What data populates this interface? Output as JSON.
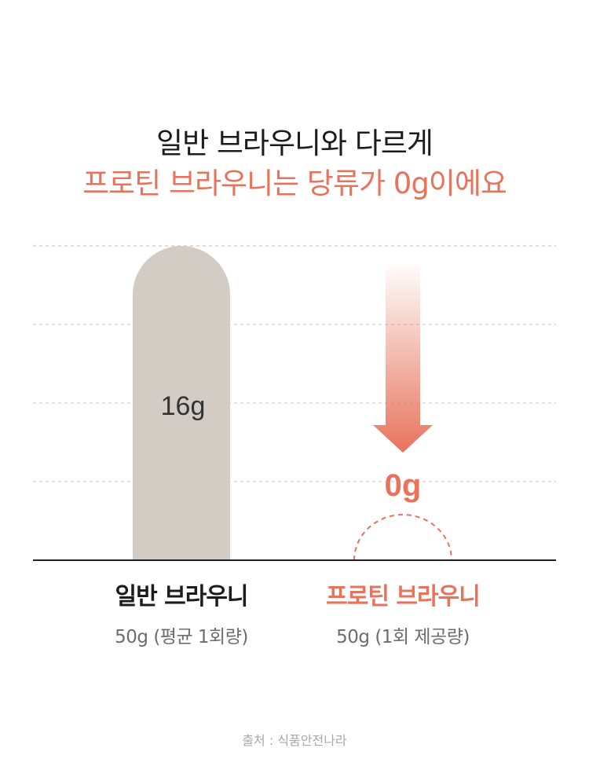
{
  "headline": {
    "line1": "일반 브라우니와 다르게",
    "line2": "프로틴 브라우니는 당류가 0g이에요"
  },
  "chart_data": {
    "type": "bar",
    "categories": [
      "일반 브라우니",
      "프로틴 브라우니"
    ],
    "category_notes": [
      "50g (평균 1회량)",
      "50g (1회 제공량)"
    ],
    "values": [
      16,
      0
    ],
    "value_labels": [
      "16g",
      "0g"
    ],
    "ylim": [
      0,
      16
    ],
    "grid": true,
    "colors": {
      "regular_bar": "#d3ccc4",
      "protein": "#e8735d",
      "grid": "#d8d8d8",
      "top_grid": "#f2c4bb",
      "baseline": "#222222",
      "regular_label": "#1c1c1c"
    }
  },
  "source": "출처 : 식품안전나라"
}
